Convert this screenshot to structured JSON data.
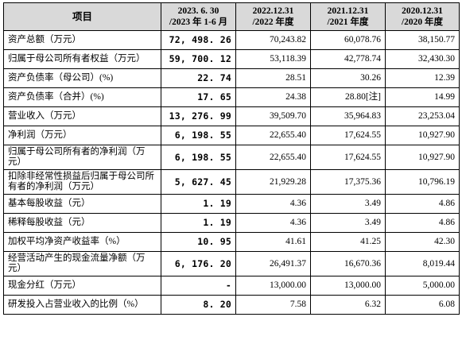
{
  "table": {
    "headers": [
      {
        "lines": [
          "项目"
        ]
      },
      {
        "lines": [
          "2023. 6. 30",
          "/2023 年 1-6 月"
        ]
      },
      {
        "lines": [
          "2022.12.31",
          "/2022 年度"
        ]
      },
      {
        "lines": [
          "2021.12.31",
          "/2021 年度"
        ]
      },
      {
        "lines": [
          "2020.12.31",
          "/2020 年度"
        ]
      }
    ],
    "rows": [
      {
        "label": "资产总额（万元）",
        "values": [
          "72, 498. 26",
          "70,243.82",
          "60,078.76",
          "38,150.77"
        ]
      },
      {
        "label": "归属于母公司所有者权益（万元）",
        "values": [
          "59, 700. 12",
          "53,118.39",
          "42,778.74",
          "32,430.30"
        ]
      },
      {
        "label": "资产负债率（母公司）(%)",
        "values": [
          "22. 74",
          "28.51",
          "30.26",
          "12.39"
        ]
      },
      {
        "label": "资产负债率（合并）(%)",
        "values": [
          "17. 65",
          "24.38",
          "28.80[注]",
          "14.99"
        ]
      },
      {
        "label": "营业收入（万元）",
        "values": [
          "13, 276. 99",
          "39,509.70",
          "35,964.83",
          "23,253.04"
        ]
      },
      {
        "label": "净利润（万元）",
        "values": [
          "6, 198. 55",
          "22,655.40",
          "17,624.55",
          "10,927.90"
        ]
      },
      {
        "label": "归属于母公司所有者的净利润（万元）",
        "values": [
          "6, 198. 55",
          "22,655.40",
          "17,624.55",
          "10,927.90"
        ]
      },
      {
        "label": "扣除非经常性损益后归属于母公司所有者的净利润（万元）",
        "values": [
          "5, 627. 45",
          "21,929.28",
          "17,375.36",
          "10,796.19"
        ]
      },
      {
        "label": "基本每股收益（元）",
        "values": [
          "1. 19",
          "4.36",
          "3.49",
          "4.86"
        ]
      },
      {
        "label": "稀释每股收益（元）",
        "values": [
          "1. 19",
          "4.36",
          "3.49",
          "4.86"
        ]
      },
      {
        "label": "加权平均净资产收益率（%）",
        "values": [
          "10. 95",
          "41.61",
          "41.25",
          "42.30"
        ]
      },
      {
        "label": "经营活动产生的现金流量净额（万元）",
        "values": [
          "6, 176. 20",
          "26,491.37",
          "16,670.36",
          "8,019.44"
        ]
      },
      {
        "label": "现金分红（万元）",
        "values": [
          "-",
          "13,000.00",
          "13,000.00",
          "5,000.00"
        ]
      },
      {
        "label": "研发投入占营业收入的比例（%）",
        "values": [
          "8. 20",
          "7.58",
          "6.32",
          "6.08"
        ]
      }
    ]
  }
}
